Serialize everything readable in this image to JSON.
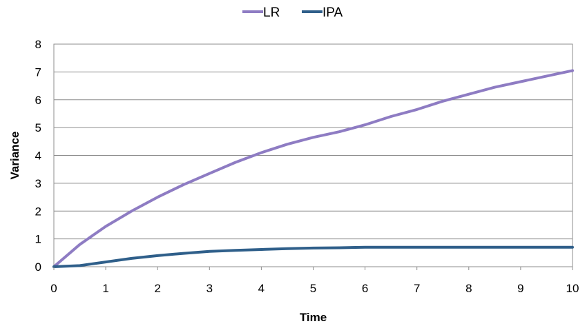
{
  "chart_data": {
    "type": "line",
    "title": "",
    "xlabel": "Time",
    "ylabel": "Variance",
    "xlim": [
      0,
      10
    ],
    "ylim": [
      0,
      8
    ],
    "x_ticks": [
      "0",
      "1",
      "2",
      "3",
      "4",
      "5",
      "6",
      "7",
      "8",
      "9",
      "10"
    ],
    "y_ticks": [
      "0",
      "1",
      "2",
      "3",
      "4",
      "5",
      "6",
      "7",
      "8"
    ],
    "grid": "horizontal",
    "legend_position": "top-center",
    "x": [
      0,
      0.5,
      1,
      1.5,
      2,
      2.5,
      3,
      3.5,
      4,
      4.5,
      5,
      5.5,
      6,
      6.5,
      7,
      7.5,
      8,
      8.5,
      9,
      9.5,
      10
    ],
    "series": [
      {
        "name": "LR",
        "color": "#8e7cc3",
        "values": [
          0,
          0.8,
          1.45,
          2.0,
          2.5,
          2.95,
          3.35,
          3.75,
          4.1,
          4.4,
          4.65,
          4.85,
          5.1,
          5.4,
          5.65,
          5.95,
          6.2,
          6.45,
          6.65,
          6.85,
          7.05
        ]
      },
      {
        "name": "IPA",
        "color": "#2f5f8a",
        "values": [
          0,
          0.04,
          0.17,
          0.3,
          0.4,
          0.48,
          0.55,
          0.59,
          0.62,
          0.65,
          0.67,
          0.68,
          0.7,
          0.7,
          0.7,
          0.7,
          0.7,
          0.7,
          0.7,
          0.7,
          0.7
        ]
      }
    ]
  }
}
